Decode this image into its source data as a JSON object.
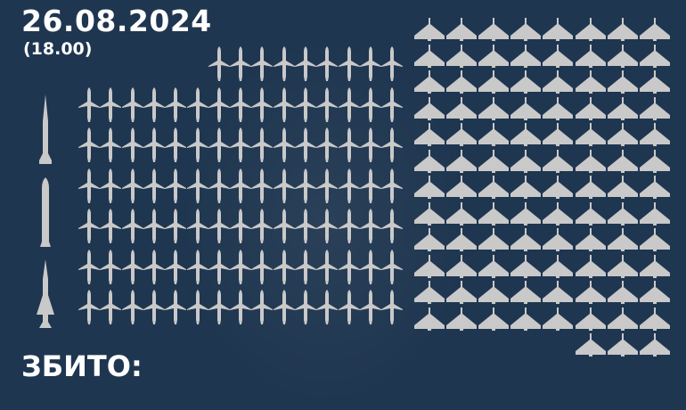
{
  "header": {
    "date": "26.08.2024",
    "time": "(18.00)"
  },
  "footer": {
    "label": "ЗБИТО:"
  },
  "colors": {
    "background": "#1f3650",
    "icon": "#c9c9c9",
    "text": "#ffffff"
  },
  "legend_icons": [
    "ballistic-missile-icon",
    "cruise-missile-icon",
    "guided-missile-icon"
  ],
  "missiles": {
    "icon": "cruise-missile-icon",
    "count": 99,
    "per_row": 15
  },
  "drones": {
    "icon": "shahed-drone-icon",
    "count": 99,
    "per_row": 8
  }
}
